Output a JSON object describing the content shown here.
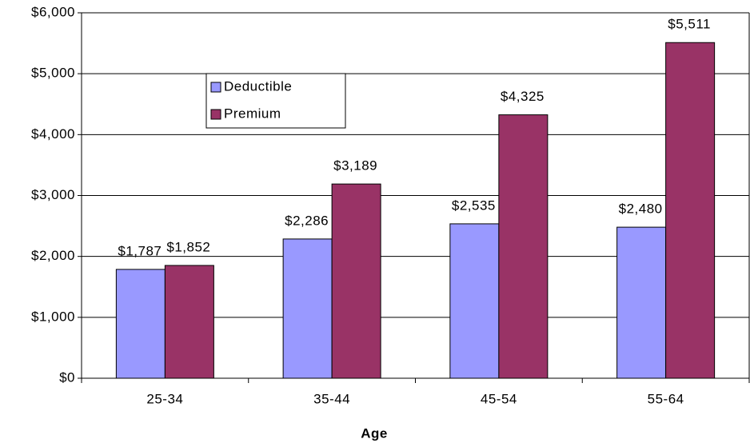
{
  "chart_data": {
    "type": "bar",
    "x_label": "Age",
    "categories": [
      "25-34",
      "35-44",
      "45-54",
      "55-64"
    ],
    "series": [
      {
        "name": "Deductible",
        "color": "#9999ff",
        "values": [
          1787,
          2286,
          2535,
          2480
        ],
        "value_labels": [
          "$1,787",
          "$2,286",
          "$2,535",
          "$2,480"
        ]
      },
      {
        "name": "Premium",
        "color": "#993366",
        "values": [
          1852,
          3189,
          4325,
          5511
        ],
        "value_labels": [
          "$1,852",
          "$3,189",
          "$4,325",
          "$5,511"
        ]
      }
    ],
    "ylim": [
      0,
      6000
    ],
    "yticks": [
      {
        "value": 0,
        "label": "$0"
      },
      {
        "value": 1000,
        "label": "$1,000"
      },
      {
        "value": 2000,
        "label": "$2,000"
      },
      {
        "value": 3000,
        "label": "$3,000"
      },
      {
        "value": 4000,
        "label": "$4,000"
      },
      {
        "value": 5000,
        "label": "$5,000"
      },
      {
        "value": 6000,
        "label": "$6,000"
      }
    ],
    "grid": true
  }
}
